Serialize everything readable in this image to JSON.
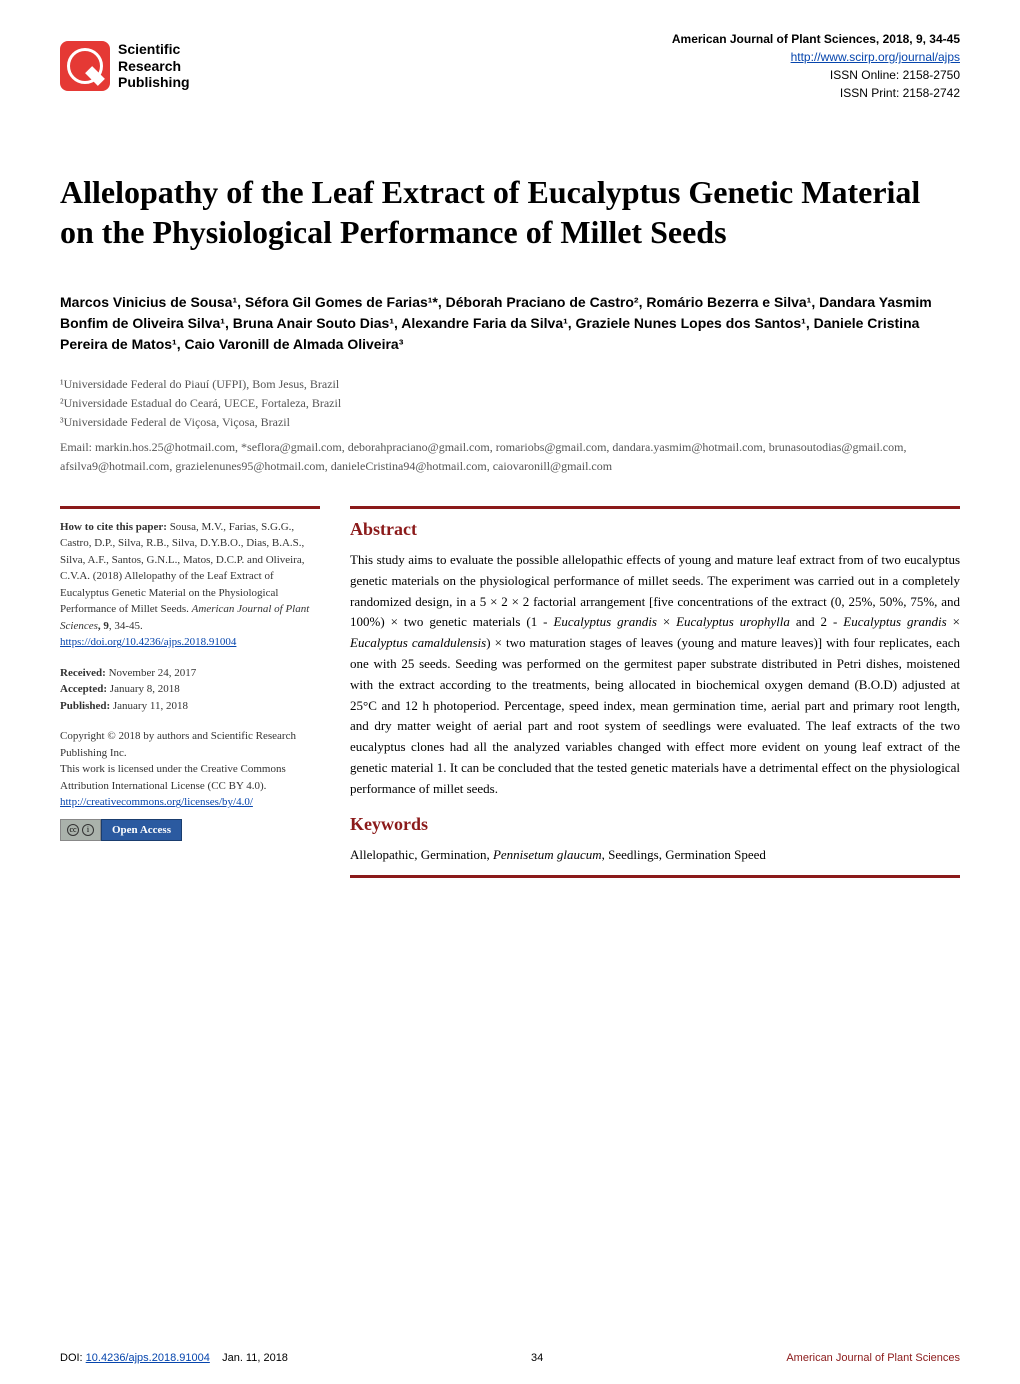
{
  "colors": {
    "maroon": "#8b1a1a",
    "link_blue": "#0645ad",
    "logo_red": "#e53935",
    "oa_blue": "#2b5aa0",
    "cc_gray": "#aab2ab",
    "text_gray": "#555555",
    "black": "#000000",
    "white": "#ffffff"
  },
  "typography": {
    "title_fontsize": 32,
    "section_heading_fontsize": 18,
    "body_fontsize": 13,
    "sidebar_fontsize": 11,
    "meta_fontsize": 12,
    "author_fontsize": 14
  },
  "header": {
    "logo_text_line1": "Scientific",
    "logo_text_line2": "Research",
    "logo_text_line3": "Publishing",
    "journal": "American Journal of Plant Sciences, 2018, 9, 34-45",
    "url": "http://www.scirp.org/journal/ajps",
    "issn_online": "ISSN Online: 2158-2750",
    "issn_print": "ISSN Print: 2158-2742"
  },
  "title": "Allelopathy of the Leaf Extract of Eucalyptus Genetic Material on the Physiological Performance of Millet Seeds",
  "authors_line": "Marcos Vinicius de Sousa¹, Séfora Gil Gomes de Farias¹*, Déborah Praciano de Castro², Romário Bezerra e Silva¹, Dandara Yasmim Bonfim de Oliveira Silva¹, Bruna Anair Souto Dias¹, Alexandre Faria da Silva¹, Graziele Nunes Lopes dos Santos¹, Daniele Cristina Pereira de Matos¹, Caio Varonill de Almada Oliveira³",
  "affiliations": [
    "¹Universidade Federal do Piauí (UFPI), Bom Jesus, Brazil",
    "²Universidade Estadual do Ceará, UECE, Fortaleza, Brazil",
    "³Universidade Federal de Viçosa, Viçosa, Brazil"
  ],
  "emails": "Email: markin.hos.25@hotmail.com, *seflora@gmail.com, deborahpraciano@gmail.com, romariobs@gmail.com, dandara.yasmim@hotmail.com, brunasoutodias@gmail.com, afsilva9@hotmail.com, grazielenunes95@hotmail.com, danieleCristina94@hotmail.com, caiovaronill@gmail.com",
  "sidebar": {
    "cite_label": "How to cite this paper:",
    "cite_text": " Sousa, M.V., Farias, S.G.G., Castro, D.P., Silva, R.B., Silva, D.Y.B.O., Dias, B.A.S., Silva, A.F., Santos, G.N.L., Matos, D.C.P. and Oliveira, C.V.A. (2018) Allelopathy of the Leaf Extract of Eucalyptus Genetic Material on the Physiological Performance of Millet Seeds. ",
    "cite_journal": "American Journal of Plant Sciences",
    "cite_vol": ", 9",
    "cite_pages": ", 34-45.",
    "cite_doi": "https://doi.org/10.4236/ajps.2018.91004",
    "received_label": "Received:",
    "received": " November 24, 2017",
    "accepted_label": "Accepted:",
    "accepted": " January 8, 2018",
    "published_label": "Published:",
    "published": " January 11, 2018",
    "copyright": "Copyright © 2018 by authors and Scientific Research Publishing Inc.",
    "license": "This work is licensed under the Creative Commons Attribution International License (CC BY 4.0).",
    "license_url": "http://creativecommons.org/licenses/by/4.0/",
    "cc_label": "cc",
    "by_label": "i",
    "open_access": "Open Access"
  },
  "abstract_heading": "Abstract",
  "abstract_text": "This study aims to evaluate the possible allelopathic effects of young and mature leaf extract from of two eucalyptus genetic materials on the physiological performance of millet seeds. The experiment was carried out in a completely randomized design, in a 5 × 2 × 2 factorial arrangement [five concentrations of the extract (0, 25%, 50%, 75%, and 100%) × two genetic materials (1 - Eucalyptus grandis × Eucalyptus urophylla and 2 - Eucalyptus grandis × Eucalyptus camaldulensis) × two maturation stages of leaves (young and mature leaves)] with four replicates, each one with 25 seeds. Seeding was performed on the germitest paper substrate distributed in Petri dishes, moistened with the extract according to the treatments, being allocated in biochemical oxygen demand (B.O.D) adjusted at 25°C and 12 h photoperiod. Percentage, speed index, mean germination time, aerial part and primary root length, and dry matter weight of aerial part and root system of seedlings were evaluated. The leaf extracts of the two eucalyptus clones had all the analyzed variables changed with effect more evident on young leaf extract of the genetic material 1. It can be concluded that the tested genetic materials have a detrimental effect on the physiological performance of millet seeds.",
  "keywords_heading": "Keywords",
  "keywords_text": "Allelopathic, Germination, Pennisetum glaucum, Seedlings, Germination Speed",
  "footer": {
    "doi_label": "DOI: ",
    "doi": "10.4236/ajps.2018.91004",
    "date": "Jan. 11, 2018",
    "page": "34",
    "journal": "American Journal of Plant Sciences"
  }
}
